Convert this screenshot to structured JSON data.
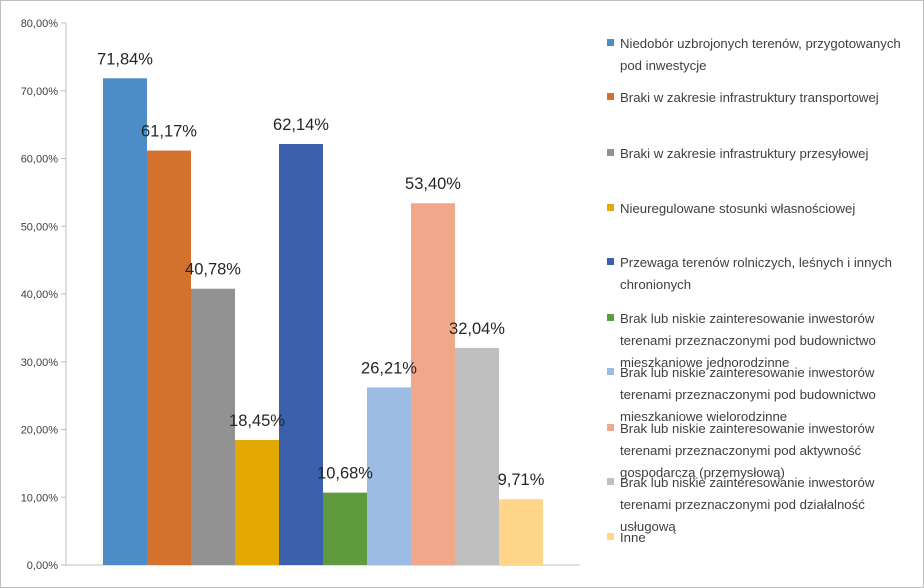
{
  "chart_data": {
    "type": "bar",
    "title": "",
    "xlabel": "",
    "ylabel": "",
    "ylim": [
      0,
      80
    ],
    "ytick_step": 10,
    "ytick_labels": [
      "0,00%",
      "10,00%",
      "20,00%",
      "30,00%",
      "40,00%",
      "50,00%",
      "60,00%",
      "70,00%",
      "80,00%"
    ],
    "grid": false,
    "legend_position": "right",
    "series": [
      {
        "name": "Niedobór uzbrojonych terenów, przygotowanych pod inwestycje",
        "value": 71.84,
        "label": "71,84%",
        "color": "#4E8CC7"
      },
      {
        "name": "Braki w zakresie infrastruktury transportowej",
        "value": 61.17,
        "label": "61,17%",
        "color": "#D4712D"
      },
      {
        "name": "Braki w zakresie infrastruktury przesyłowej",
        "value": 40.78,
        "label": "40,78%",
        "color": "#929292"
      },
      {
        "name": "Nieuregulowane stosunki własnościowej",
        "value": 18.45,
        "label": "18,45%",
        "color": "#E3A803"
      },
      {
        "name": "Przewaga terenów rolniczych, leśnych i innych chronionych",
        "value": 62.14,
        "label": "62,14%",
        "color": "#3B60AC"
      },
      {
        "name": "Brak lub niskie zainteresowanie inwestorów terenami przeznaczonymi pod budownictwo mieszkaniowe jednorodzinne",
        "value": 10.68,
        "label": "10,68%",
        "color": "#5F9A3E"
      },
      {
        "name": "Brak lub niskie zainteresowanie inwestorów terenami przeznaczonymi pod budownictwo mieszkaniowe wielorodzinne",
        "value": 26.21,
        "label": "26,21%",
        "color": "#9CBCE3"
      },
      {
        "name": "Brak lub niskie zainteresowanie inwestorów terenami przeznaczonymi pod aktywność gospodarczą (przemysłową)",
        "value": 53.4,
        "label": "53,40%",
        "color": "#F1A88A"
      },
      {
        "name": "Brak lub niskie zainteresowanie inwestorów terenami przeznaczonymi pod działalność usługową",
        "value": 32.04,
        "label": "32,04%",
        "color": "#BFBFBF"
      },
      {
        "name": "Inne",
        "value": 9.71,
        "label": "9,71%",
        "color": "#FFD58A"
      }
    ]
  }
}
